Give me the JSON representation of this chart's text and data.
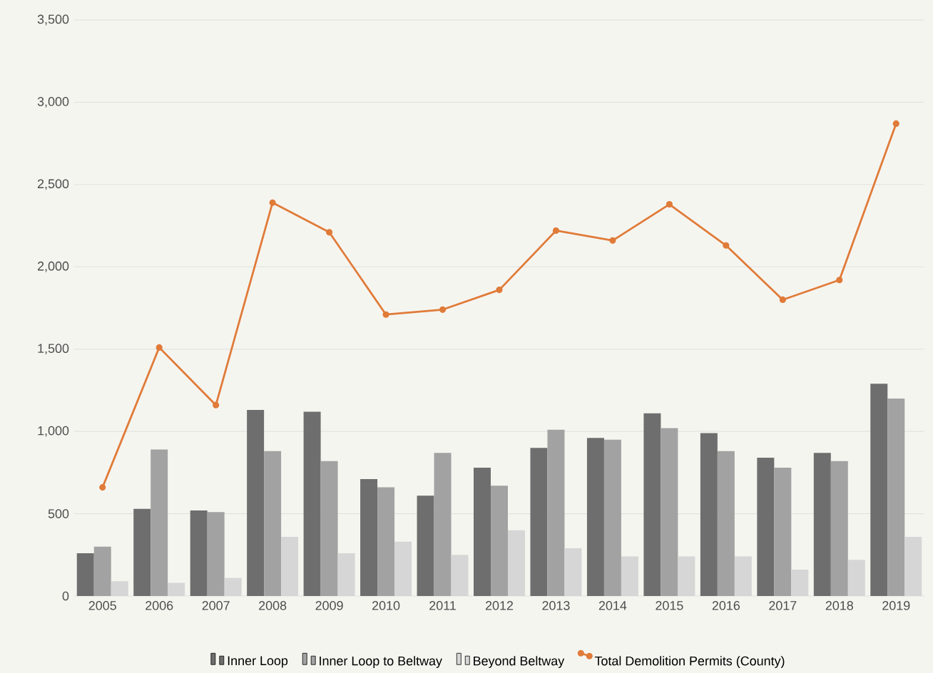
{
  "chart_data": {
    "type": "bar",
    "categories": [
      "2005",
      "2006",
      "2007",
      "2008",
      "2009",
      "2010",
      "2011",
      "2012",
      "2013",
      "2014",
      "2015",
      "2016",
      "2017",
      "2018",
      "2019"
    ],
    "series": [
      {
        "name": "Inner Loop",
        "color": "#6e6e6e",
        "values": [
          260,
          530,
          520,
          1130,
          1120,
          710,
          610,
          780,
          900,
          960,
          1110,
          990,
          840,
          870,
          1290
        ]
      },
      {
        "name": "Inner Loop to Beltway",
        "color": "#a2a2a2",
        "values": [
          300,
          890,
          510,
          880,
          820,
          660,
          870,
          670,
          1010,
          950,
          1020,
          880,
          780,
          820,
          1200
        ]
      },
      {
        "name": "Beyond Beltway",
        "color": "#d6d6d6",
        "values": [
          90,
          80,
          110,
          360,
          260,
          330,
          250,
          400,
          290,
          240,
          240,
          240,
          160,
          220,
          360
        ]
      },
      {
        "name": "Total Demolition Permits (County)",
        "type": "line",
        "color": "#e07b39",
        "marker": "circle",
        "values": [
          660,
          1510,
          1160,
          2390,
          2210,
          1710,
          1740,
          1860,
          2220,
          2160,
          2380,
          2130,
          1800,
          1920,
          2870
        ]
      }
    ],
    "ylim": [
      0,
      3500
    ],
    "yticks": [
      {
        "value": 0,
        "label": "0"
      },
      {
        "value": 500,
        "label": "500"
      },
      {
        "value": 1000,
        "label": "1,000"
      },
      {
        "value": 1500,
        "label": "1,500"
      },
      {
        "value": 2000,
        "label": "2,000"
      },
      {
        "value": 2500,
        "label": "2,500"
      },
      {
        "value": 3000,
        "label": "3,000"
      },
      {
        "value": 3500,
        "label": "3,500"
      }
    ],
    "grid": "y",
    "legend": "bottom"
  }
}
